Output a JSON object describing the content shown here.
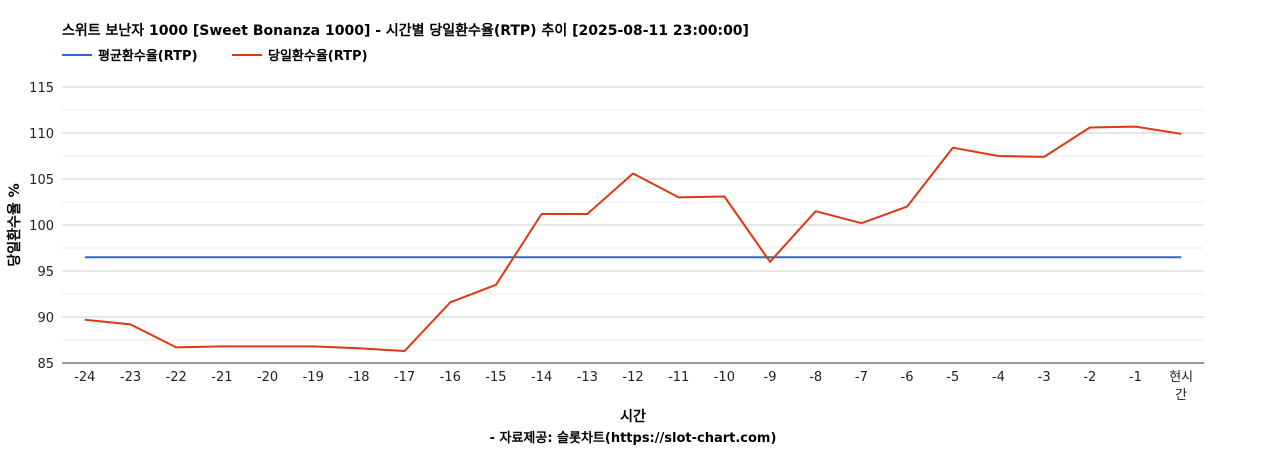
{
  "chart_data": {
    "type": "line",
    "title": "스위트 보난자 1000 [Sweet Bonanza 1000] - 시간별 당일환수율(RTP) 추이 [2025-08-11 23:00:00]",
    "xlabel": "시간",
    "ylabel": "당일환수율 %",
    "caption": "- 자료제공: 슬롯차트(https://slot-chart.com)",
    "categories": [
      "-24",
      "-23",
      "-22",
      "-21",
      "-20",
      "-19",
      "-18",
      "-17",
      "-16",
      "-15",
      "-14",
      "-13",
      "-12",
      "-11",
      "-10",
      "-9",
      "-8",
      "-7",
      "-6",
      "-5",
      "-4",
      "-3",
      "-2",
      "-1",
      "현시간"
    ],
    "series": [
      {
        "name": "평균환수율(RTP)",
        "color": "#3366cc",
        "values": [
          96.5,
          96.5,
          96.5,
          96.5,
          96.5,
          96.5,
          96.5,
          96.5,
          96.5,
          96.5,
          96.5,
          96.5,
          96.5,
          96.5,
          96.5,
          96.5,
          96.5,
          96.5,
          96.5,
          96.5,
          96.5,
          96.5,
          96.5,
          96.5,
          96.5
        ]
      },
      {
        "name": "당일환수율(RTP)",
        "color": "#dc3912",
        "values": [
          89.7,
          89.2,
          86.7,
          86.8,
          86.8,
          86.8,
          86.6,
          86.3,
          91.6,
          93.5,
          101.2,
          101.2,
          105.6,
          103.0,
          103.1,
          96.0,
          101.5,
          100.2,
          102.0,
          108.4,
          107.5,
          107.4,
          110.6,
          110.7,
          109.9
        ]
      }
    ],
    "ylim": [
      85,
      115
    ],
    "yticks": [
      85,
      90,
      95,
      100,
      105,
      110,
      115
    ],
    "grid": true,
    "legend": "top-left"
  }
}
